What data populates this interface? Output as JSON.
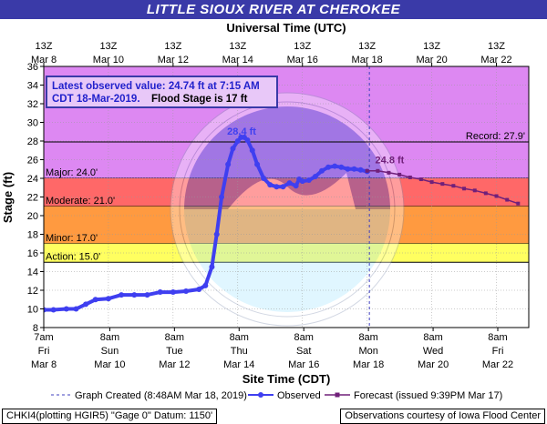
{
  "title": "LITTLE SIOUX RIVER AT CHEROKEE",
  "top_axis_title": "Universal Time (UTC)",
  "bottom_axis_title": "Site Time (CDT)",
  "y_axis_title": "Stage (ft)",
  "info_box": {
    "line1": "Latest observed value: 24.74 ft at 7:15 AM",
    "line2a": "CDT 18-Mar-2019.",
    "line2b": "Flood Stage is 17 ft"
  },
  "colors": {
    "title_bar": "#3a3aa8",
    "major": "#dd88f2",
    "moderate": "#ff6868",
    "minor": "#ff9a40",
    "action": "#ffff60",
    "observed": "#3f3ff0",
    "forecast": "#70207a",
    "created_line": "#3f3fbf"
  },
  "legend": {
    "created": "Graph Created (8:48AM Mar 18, 2019)",
    "observed": "Observed",
    "forecast": "Forecast (issued 9:39PM Mar 17)"
  },
  "footer": {
    "left": "CHKI4(plotting HGIR5) \"Gage 0\" Datum: 1150'",
    "right": "Observations courtesy of Iowa Flood Center"
  },
  "chart_data": {
    "type": "line",
    "ylim": [
      8,
      36
    ],
    "yticks": [
      8,
      10,
      12,
      14,
      16,
      18,
      20,
      22,
      24,
      26,
      28,
      30,
      32,
      34,
      36
    ],
    "x_unit": "days since Mar 8 7am CDT",
    "xlim": [
      0,
      15.0
    ],
    "bottom_ticks": [
      {
        "x": 0.0,
        "l1": "7am",
        "l2": "Fri",
        "l3": "Mar 8"
      },
      {
        "x": 2.0417,
        "l1": "8am",
        "l2": "Sun",
        "l3": "Mar 10"
      },
      {
        "x": 4.0417,
        "l1": "8am",
        "l2": "Tue",
        "l3": "Mar 12"
      },
      {
        "x": 6.0417,
        "l1": "8am",
        "l2": "Thu",
        "l3": "Mar 14"
      },
      {
        "x": 8.0417,
        "l1": "8am",
        "l2": "Sat",
        "l3": "Mar 16"
      },
      {
        "x": 10.0417,
        "l1": "8am",
        "l2": "Mon",
        "l3": "Mar 18"
      },
      {
        "x": 12.0417,
        "l1": "8am",
        "l2": "Wed",
        "l3": "Mar 20"
      },
      {
        "x": 14.0417,
        "l1": "8am",
        "l2": "Fri",
        "l3": "Mar 22"
      }
    ],
    "top_ticks": [
      {
        "x": 0.0,
        "l1": "13Z",
        "l2": "Mar 8"
      },
      {
        "x": 2.0,
        "l1": "13Z",
        "l2": "Mar 10"
      },
      {
        "x": 4.0,
        "l1": "13Z",
        "l2": "Mar 12"
      },
      {
        "x": 6.0,
        "l1": "13Z",
        "l2": "Mar 14"
      },
      {
        "x": 8.0,
        "l1": "13Z",
        "l2": "Mar 16"
      },
      {
        "x": 10.0,
        "l1": "13Z",
        "l2": "Mar 18"
      },
      {
        "x": 12.0,
        "l1": "13Z",
        "l2": "Mar 20"
      },
      {
        "x": 14.0,
        "l1": "13Z",
        "l2": "Mar 22"
      }
    ],
    "flood_bands": [
      {
        "name": "major",
        "label": "Major: 24.0'",
        "from": 24,
        "to": 36
      },
      {
        "name": "moderate",
        "label": "Moderate: 21.0'",
        "from": 21,
        "to": 24
      },
      {
        "name": "minor",
        "label": "Minor: 17.0'",
        "from": 17,
        "to": 21
      },
      {
        "name": "action",
        "label": "Action: 15.0'",
        "from": 15,
        "to": 17
      }
    ],
    "record": {
      "label": "Record: 27.9'",
      "value": 27.9
    },
    "created_x": 10.07,
    "annotations": [
      {
        "text": "28.4 ft",
        "x": 6.12,
        "y": 28.7
      },
      {
        "text": "24.8 ft",
        "x": 10.25,
        "y": 25.6
      }
    ],
    "observed": {
      "x": [
        0.0,
        0.3,
        0.7,
        1.0,
        1.3,
        1.6,
        2.0,
        2.4,
        2.8,
        3.2,
        3.6,
        4.0,
        4.4,
        4.8,
        5.0,
        5.2,
        5.35,
        5.5,
        5.7,
        5.85,
        6.0,
        6.1,
        6.2,
        6.3,
        6.45,
        6.6,
        6.8,
        7.0,
        7.2,
        7.4,
        7.6,
        7.8,
        7.9,
        8.0,
        8.2,
        8.4,
        8.6,
        8.8,
        9.0,
        9.2,
        9.4,
        9.6,
        9.8,
        10.0
      ],
      "y": [
        9.9,
        9.9,
        10.0,
        10.0,
        10.5,
        11.0,
        11.1,
        11.5,
        11.5,
        11.5,
        11.8,
        11.8,
        11.9,
        12.1,
        12.5,
        14.5,
        18.0,
        22.0,
        25.5,
        27.2,
        28.0,
        28.4,
        28.4,
        28.1,
        27.0,
        25.5,
        24.0,
        23.3,
        23.1,
        23.1,
        23.5,
        23.2,
        23.9,
        23.7,
        23.8,
        24.2,
        24.8,
        25.2,
        25.3,
        25.2,
        25.0,
        25.0,
        24.9,
        24.74
      ]
    },
    "forecast": {
      "x": [
        10.0,
        10.33,
        10.67,
        11.0,
        11.33,
        11.67,
        12.0,
        12.33,
        12.67,
        13.0,
        13.33,
        13.67,
        14.0,
        14.33,
        14.67
      ],
      "y": [
        24.8,
        24.8,
        24.6,
        24.4,
        24.1,
        23.9,
        23.6,
        23.4,
        23.2,
        22.9,
        22.7,
        22.4,
        22.1,
        21.7,
        21.3
      ]
    }
  }
}
